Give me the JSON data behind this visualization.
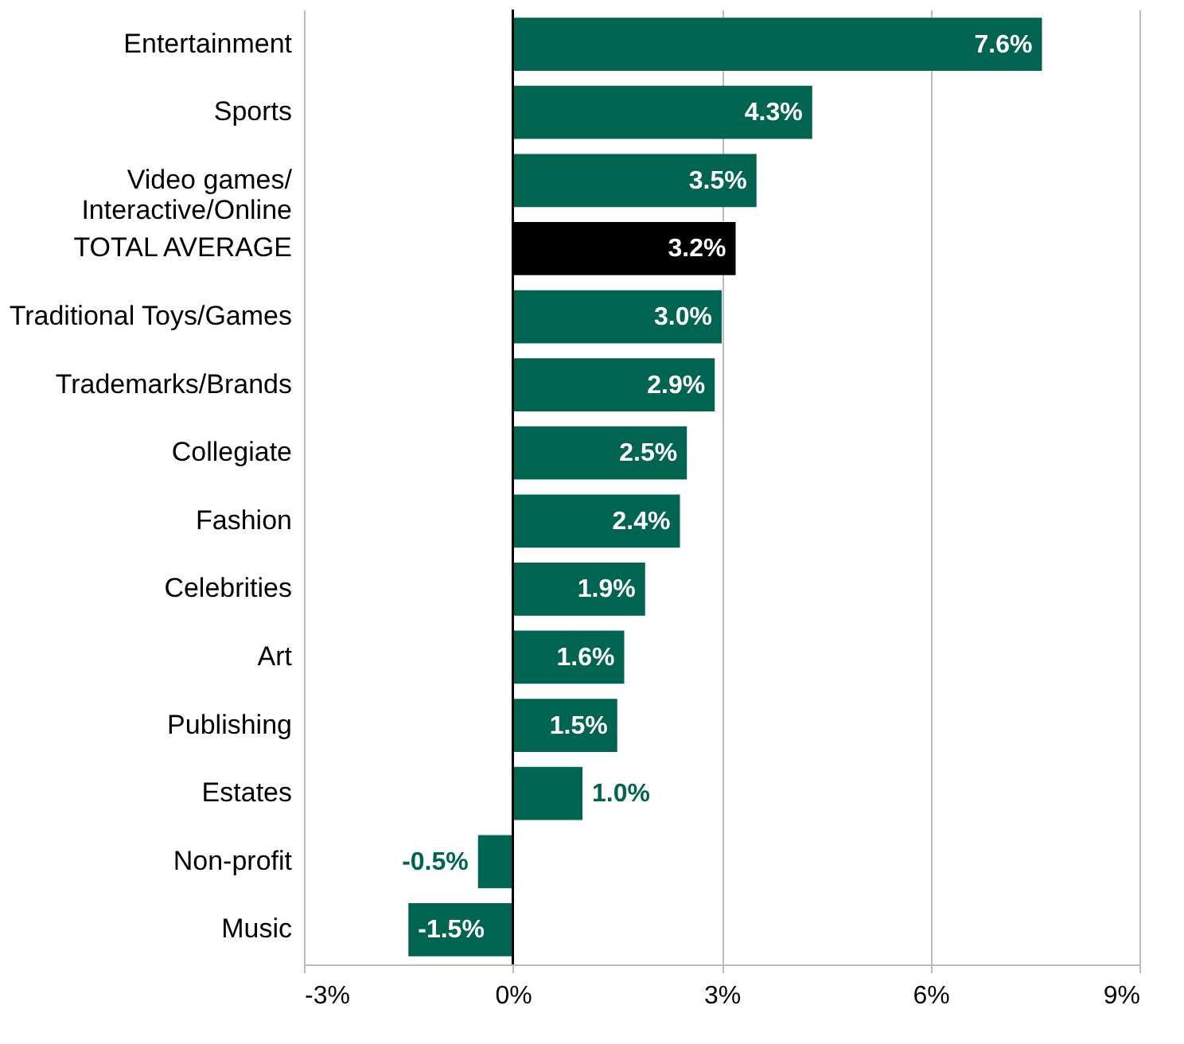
{
  "chart_data": {
    "type": "bar",
    "orientation": "horizontal",
    "categories": [
      "Entertainment",
      "Sports",
      "Video games/\nInteractive/Online",
      "TOTAL AVERAGE",
      "Traditional Toys/Games",
      "Trademarks/Brands",
      "Collegiate",
      "Fashion",
      "Celebrities",
      "Art",
      "Publishing",
      "Estates",
      "Non-profit",
      "Music"
    ],
    "values": [
      7.6,
      4.3,
      3.5,
      3.2,
      3.0,
      2.9,
      2.5,
      2.4,
      1.9,
      1.6,
      1.5,
      1.0,
      -0.5,
      -1.5
    ],
    "colors": [
      "#006450",
      "#006450",
      "#006450",
      "#000000",
      "#006450",
      "#006450",
      "#006450",
      "#006450",
      "#006450",
      "#006450",
      "#006450",
      "#006450",
      "#006450",
      "#006450"
    ],
    "value_labels": [
      "7.6%",
      "4.3%",
      "3.5%",
      "3.2%",
      "3.0%",
      "2.9%",
      "2.5%",
      "2.4%",
      "1.9%",
      "1.6%",
      "1.5%",
      "1.0%",
      "-0.5%",
      "-1.5%"
    ],
    "xlim": [
      -3,
      9
    ],
    "xticks": [
      {
        "value": -3,
        "label": "-3%"
      },
      {
        "value": 0,
        "label": "0%"
      },
      {
        "value": 3,
        "label": "3%"
      },
      {
        "value": 6,
        "label": "6%"
      },
      {
        "value": 9,
        "label": "9%"
      }
    ],
    "ref_lines": [
      {
        "axis": "x",
        "value": 0,
        "color": "#000000"
      }
    ],
    "grid": "x"
  }
}
